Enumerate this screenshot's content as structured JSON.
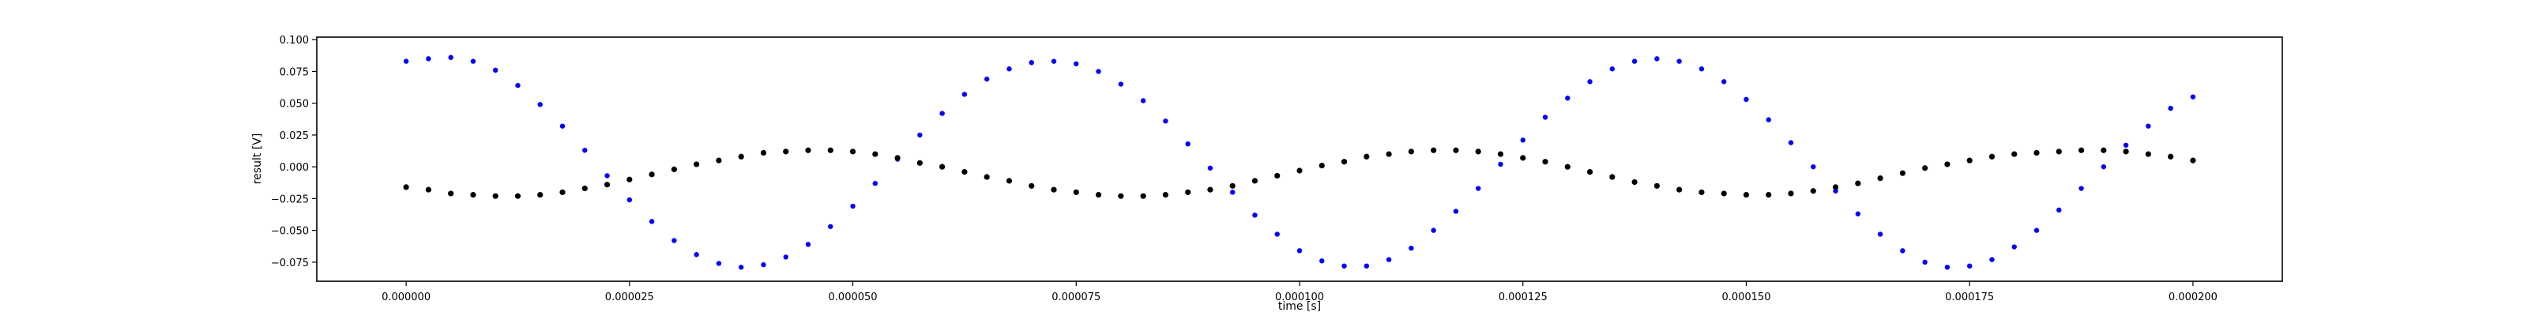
{
  "chart_data": {
    "type": "scatter",
    "title": "",
    "xlabel": "time [s]",
    "ylabel": "result [V]",
    "xlim": [
      -1e-05,
      0.00021
    ],
    "ylim": [
      -0.09,
      0.102
    ],
    "grid": false,
    "x_ticks": [
      {
        "value": 0.0,
        "label": "0.000000"
      },
      {
        "value": 2.5e-05,
        "label": "0.000025"
      },
      {
        "value": 5e-05,
        "label": "0.000050"
      },
      {
        "value": 7.5e-05,
        "label": "0.000075"
      },
      {
        "value": 0.0001,
        "label": "0.000100"
      },
      {
        "value": 0.000125,
        "label": "0.000125"
      },
      {
        "value": 0.00015,
        "label": "0.000150"
      },
      {
        "value": 0.000175,
        "label": "0.000175"
      },
      {
        "value": 0.0002,
        "label": "0.000200"
      }
    ],
    "y_ticks": [
      {
        "value": 0.1,
        "label": "0.100"
      },
      {
        "value": 0.075,
        "label": "0.075"
      },
      {
        "value": 0.05,
        "label": "0.050"
      },
      {
        "value": 0.025,
        "label": "0.025"
      },
      {
        "value": 0.0,
        "label": "0.000"
      },
      {
        "value": -0.025,
        "label": "−0.025"
      },
      {
        "value": -0.05,
        "label": "−0.050"
      },
      {
        "value": -0.075,
        "label": "−0.075"
      }
    ],
    "series": [
      {
        "color": "#0000ff",
        "marker": "dot",
        "x": [
          0.0,
          2.5e-06,
          5e-06,
          7.5e-06,
          1e-05,
          1.25e-05,
          1.5e-05,
          1.75e-05,
          2e-05,
          2.25e-05,
          2.5e-05,
          2.75e-05,
          3e-05,
          3.25e-05,
          3.5e-05,
          3.75e-05,
          4e-05,
          4.25e-05,
          4.5e-05,
          4.75e-05,
          5e-05,
          5.25e-05,
          5.5e-05,
          5.75e-05,
          6e-05,
          6.25e-05,
          6.5e-05,
          6.75e-05,
          7e-05,
          7.25e-05,
          7.5e-05,
          7.75e-05,
          8e-05,
          8.25e-05,
          8.5e-05,
          8.75e-05,
          9e-05,
          9.25e-05,
          9.5e-05,
          9.75e-05,
          0.0001,
          0.0001025,
          0.000105,
          0.0001075,
          0.00011,
          0.0001125,
          0.000115,
          0.0001175,
          0.00012,
          0.0001225,
          0.000125,
          0.0001275,
          0.00013,
          0.0001325,
          0.000135,
          0.0001375,
          0.00014,
          0.0001425,
          0.000145,
          0.0001475,
          0.00015,
          0.0001525,
          0.000155,
          0.0001575,
          0.00016,
          0.0001625,
          0.000165,
          0.0001675,
          0.00017,
          0.0001725,
          0.000175,
          0.0001775,
          0.00018,
          0.0001825,
          0.000185,
          0.0001875,
          0.00019,
          0.0001925,
          0.000195,
          0.0001975,
          0.0002
        ],
        "y": [
          0.083,
          0.085,
          0.086,
          0.083,
          0.076,
          0.064,
          0.049,
          0.032,
          0.013,
          -0.007,
          -0.026,
          -0.043,
          -0.058,
          -0.069,
          -0.076,
          -0.079,
          -0.077,
          -0.071,
          -0.061,
          -0.047,
          -0.031,
          -0.013,
          0.006,
          0.025,
          0.042,
          0.057,
          0.069,
          0.077,
          0.082,
          0.083,
          0.081,
          0.075,
          0.065,
          0.052,
          0.036,
          0.018,
          -0.001,
          -0.02,
          -0.038,
          -0.053,
          -0.066,
          -0.074,
          -0.078,
          -0.078,
          -0.073,
          -0.064,
          -0.05,
          -0.035,
          -0.017,
          0.002,
          0.021,
          0.039,
          0.054,
          0.067,
          0.077,
          0.083,
          0.085,
          0.083,
          0.077,
          0.067,
          0.053,
          0.037,
          0.019,
          0.0,
          -0.019,
          -0.037,
          -0.053,
          -0.066,
          -0.075,
          -0.079,
          -0.078,
          -0.073,
          -0.063,
          -0.05,
          -0.034,
          -0.017,
          0.0,
          0.017,
          0.032,
          0.046,
          0.055
        ]
      },
      {
        "color": "#000000",
        "marker": "dot",
        "x": [
          0.0,
          2.5e-06,
          5e-06,
          7.5e-06,
          1e-05,
          1.25e-05,
          1.5e-05,
          1.75e-05,
          2e-05,
          2.25e-05,
          2.5e-05,
          2.75e-05,
          3e-05,
          3.25e-05,
          3.5e-05,
          3.75e-05,
          4e-05,
          4.25e-05,
          4.5e-05,
          4.75e-05,
          5e-05,
          5.25e-05,
          5.5e-05,
          5.75e-05,
          6e-05,
          6.25e-05,
          6.5e-05,
          6.75e-05,
          7e-05,
          7.25e-05,
          7.5e-05,
          7.75e-05,
          8e-05,
          8.25e-05,
          8.5e-05,
          8.75e-05,
          9e-05,
          9.25e-05,
          9.5e-05,
          9.75e-05,
          0.0001,
          0.0001025,
          0.000105,
          0.0001075,
          0.00011,
          0.0001125,
          0.000115,
          0.0001175,
          0.00012,
          0.0001225,
          0.000125,
          0.0001275,
          0.00013,
          0.0001325,
          0.000135,
          0.0001375,
          0.00014,
          0.0001425,
          0.000145,
          0.0001475,
          0.00015,
          0.0001525,
          0.000155,
          0.0001575,
          0.00016,
          0.0001625,
          0.000165,
          0.0001675,
          0.00017,
          0.0001725,
          0.000175,
          0.0001775,
          0.00018,
          0.0001825,
          0.000185,
          0.0001875,
          0.00019,
          0.0001925,
          0.000195,
          0.0001975,
          0.0002
        ],
        "y": [
          -0.016,
          -0.018,
          -0.021,
          -0.022,
          -0.023,
          -0.023,
          -0.022,
          -0.02,
          -0.017,
          -0.014,
          -0.01,
          -0.006,
          -0.002,
          0.002,
          0.005,
          0.008,
          0.011,
          0.012,
          0.013,
          0.013,
          0.012,
          0.01,
          0.007,
          0.003,
          0.0,
          -0.004,
          -0.008,
          -0.011,
          -0.015,
          -0.018,
          -0.02,
          -0.022,
          -0.023,
          -0.023,
          -0.022,
          -0.02,
          -0.018,
          -0.015,
          -0.011,
          -0.007,
          -0.003,
          0.001,
          0.004,
          0.008,
          0.01,
          0.012,
          0.013,
          0.013,
          0.012,
          0.01,
          0.007,
          0.004,
          0.0,
          -0.004,
          -0.008,
          -0.012,
          -0.015,
          -0.018,
          -0.02,
          -0.021,
          -0.022,
          -0.022,
          -0.021,
          -0.019,
          -0.016,
          -0.013,
          -0.009,
          -0.005,
          -0.001,
          0.002,
          0.005,
          0.008,
          0.01,
          0.011,
          0.012,
          0.013,
          0.013,
          0.012,
          0.01,
          0.008,
          0.005
        ]
      }
    ]
  }
}
